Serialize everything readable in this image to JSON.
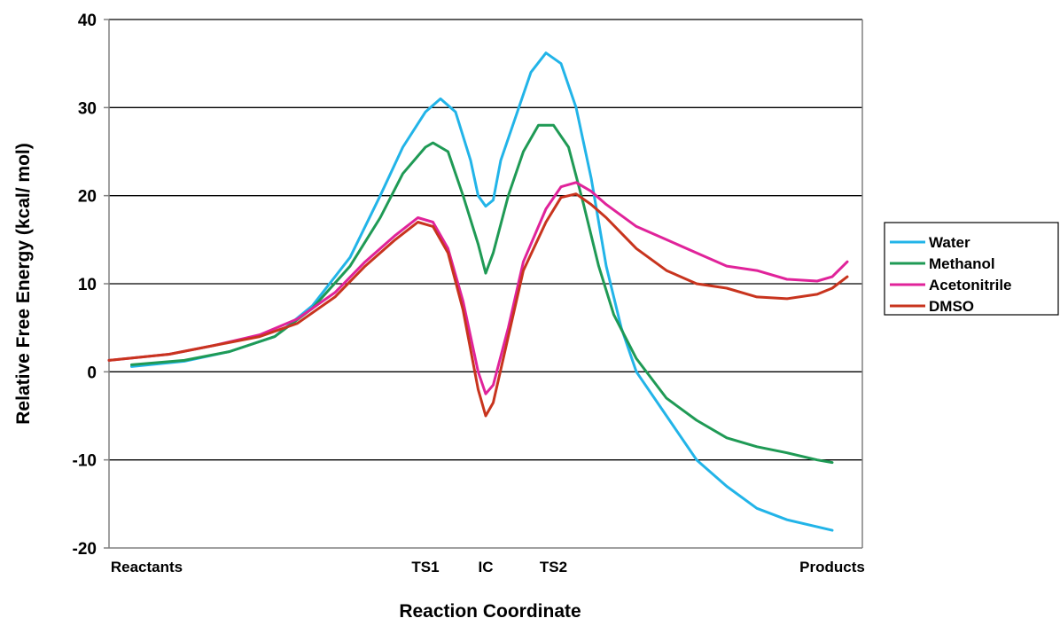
{
  "chart_data": {
    "type": "line",
    "title": "",
    "xlabel": "Reaction Coordinate",
    "ylabel": "Relative Free Energy (kcal/ mol)",
    "ylim": [
      -20,
      40
    ],
    "yticks": [
      -20,
      -10,
      0,
      10,
      20,
      30,
      40
    ],
    "xlim": [
      0,
      100
    ],
    "x_categories": [
      {
        "label": "Reactants",
        "x": 5
      },
      {
        "label": "TS1",
        "x": 42
      },
      {
        "label": "IC",
        "x": 50
      },
      {
        "label": "TS2",
        "x": 59
      },
      {
        "label": "Products",
        "x": 96
      }
    ],
    "grid": "horizontal",
    "legend_position": "right",
    "series": [
      {
        "name": "Water",
        "color": "#22b4e8",
        "points": [
          [
            3,
            0.6
          ],
          [
            10,
            1.2
          ],
          [
            16,
            2.3
          ],
          [
            22,
            4.0
          ],
          [
            27,
            7.5
          ],
          [
            32,
            13.0
          ],
          [
            36,
            20.0
          ],
          [
            39,
            25.5
          ],
          [
            42,
            29.5
          ],
          [
            44,
            31.0
          ],
          [
            46,
            29.5
          ],
          [
            48,
            24.0
          ],
          [
            49,
            20.0
          ],
          [
            50,
            18.8
          ],
          [
            51,
            19.5
          ],
          [
            52,
            24.0
          ],
          [
            54,
            29.0
          ],
          [
            56,
            34.0
          ],
          [
            58,
            36.2
          ],
          [
            60,
            35.0
          ],
          [
            62,
            30.0
          ],
          [
            64,
            22.0
          ],
          [
            66,
            12.0
          ],
          [
            68,
            5.0
          ],
          [
            70,
            0.0
          ],
          [
            74,
            -5.0
          ],
          [
            78,
            -10.0
          ],
          [
            82,
            -13.0
          ],
          [
            86,
            -15.5
          ],
          [
            90,
            -16.8
          ],
          [
            96,
            -18.0
          ]
        ]
      },
      {
        "name": "Methanol",
        "color": "#1f9a55",
        "points": [
          [
            3,
            0.8
          ],
          [
            10,
            1.3
          ],
          [
            16,
            2.3
          ],
          [
            22,
            4.0
          ],
          [
            27,
            7.2
          ],
          [
            32,
            12.0
          ],
          [
            36,
            17.5
          ],
          [
            39,
            22.5
          ],
          [
            42,
            25.5
          ],
          [
            43,
            26.0
          ],
          [
            45,
            25.0
          ],
          [
            47,
            20.0
          ],
          [
            49,
            14.5
          ],
          [
            50,
            11.2
          ],
          [
            51,
            13.5
          ],
          [
            53,
            20.0
          ],
          [
            55,
            25.0
          ],
          [
            57,
            28.0
          ],
          [
            59,
            28.0
          ],
          [
            61,
            25.5
          ],
          [
            63,
            19.0
          ],
          [
            65,
            12.0
          ],
          [
            67,
            6.5
          ],
          [
            70,
            1.5
          ],
          [
            74,
            -3.0
          ],
          [
            78,
            -5.5
          ],
          [
            82,
            -7.5
          ],
          [
            86,
            -8.5
          ],
          [
            90,
            -9.2
          ],
          [
            94,
            -10.0
          ],
          [
            96,
            -10.3
          ]
        ]
      },
      {
        "name": "Acetonitrile",
        "color": "#e0239a",
        "points": [
          [
            0,
            1.3
          ],
          [
            8,
            2.0
          ],
          [
            14,
            3.0
          ],
          [
            20,
            4.2
          ],
          [
            25,
            6.0
          ],
          [
            30,
            9.0
          ],
          [
            34,
            12.5
          ],
          [
            38,
            15.5
          ],
          [
            41,
            17.5
          ],
          [
            43,
            17.0
          ],
          [
            45,
            14.0
          ],
          [
            47,
            8.0
          ],
          [
            49,
            0.0
          ],
          [
            50,
            -2.5
          ],
          [
            51,
            -1.5
          ],
          [
            53,
            5.0
          ],
          [
            55,
            12.5
          ],
          [
            58,
            18.5
          ],
          [
            60,
            21.0
          ],
          [
            62,
            21.5
          ],
          [
            64,
            20.5
          ],
          [
            66,
            19.0
          ],
          [
            70,
            16.5
          ],
          [
            74,
            15.0
          ],
          [
            78,
            13.5
          ],
          [
            82,
            12.0
          ],
          [
            86,
            11.5
          ],
          [
            90,
            10.5
          ],
          [
            94,
            10.3
          ],
          [
            96,
            10.8
          ],
          [
            98,
            12.5
          ]
        ]
      },
      {
        "name": "DMSO",
        "color": "#c8341e",
        "points": [
          [
            0,
            1.3
          ],
          [
            8,
            2.0
          ],
          [
            14,
            3.0
          ],
          [
            20,
            4.0
          ],
          [
            25,
            5.5
          ],
          [
            30,
            8.5
          ],
          [
            34,
            12.0
          ],
          [
            38,
            15.0
          ],
          [
            41,
            17.0
          ],
          [
            43,
            16.5
          ],
          [
            45,
            13.5
          ],
          [
            47,
            7.0
          ],
          [
            49,
            -2.0
          ],
          [
            50,
            -5.0
          ],
          [
            51,
            -3.5
          ],
          [
            53,
            4.0
          ],
          [
            55,
            11.5
          ],
          [
            58,
            17.0
          ],
          [
            60,
            19.8
          ],
          [
            62,
            20.2
          ],
          [
            64,
            19.0
          ],
          [
            66,
            17.5
          ],
          [
            70,
            14.0
          ],
          [
            74,
            11.5
          ],
          [
            78,
            10.0
          ],
          [
            82,
            9.5
          ],
          [
            86,
            8.5
          ],
          [
            90,
            8.3
          ],
          [
            94,
            8.8
          ],
          [
            96,
            9.5
          ],
          [
            98,
            10.8
          ]
        ]
      }
    ]
  }
}
